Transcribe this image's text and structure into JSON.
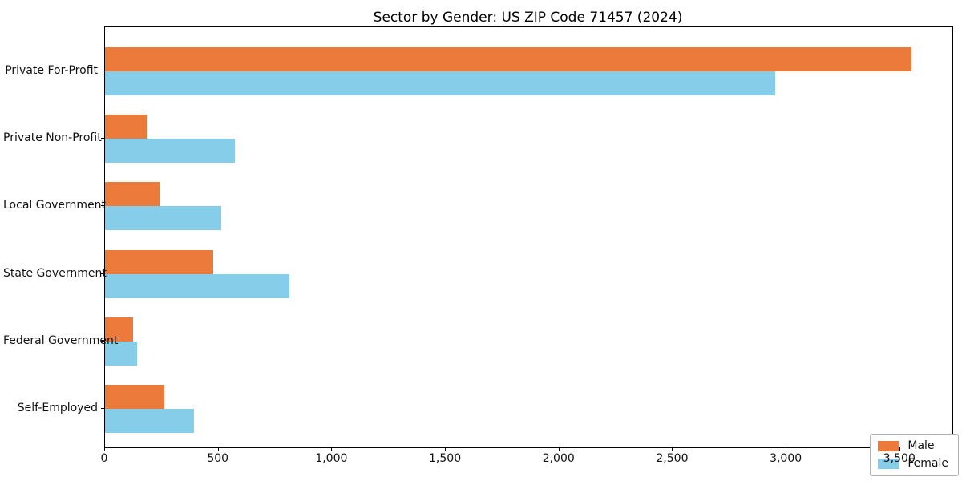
{
  "chart_data": {
    "type": "bar",
    "orientation": "horizontal",
    "title": "Sector by Gender: US ZIP Code 71457 (2024)",
    "categories": [
      "Private For-Profit",
      "Private Non-Profit",
      "Local Government",
      "State Government",
      "Federal Government",
      "Self-Employed"
    ],
    "series": [
      {
        "name": "Male",
        "color": "#EB7A3B",
        "values": [
          3550,
          185,
          240,
          475,
          125,
          260
        ]
      },
      {
        "name": "Female",
        "color": "#86CDE9",
        "values": [
          2950,
          570,
          510,
          810,
          140,
          390
        ]
      }
    ],
    "xlabel": "",
    "ylabel": "",
    "xlim": [
      0,
      3730
    ],
    "x_ticks": [
      0,
      500,
      1000,
      1500,
      2000,
      2500,
      3000,
      3500
    ],
    "x_tick_labels": [
      "0",
      "500",
      "1,000",
      "1,500",
      "2,000",
      "2,500",
      "3,000",
      "3,500"
    ],
    "grid": false,
    "legend_position": "lower right",
    "background_color": "#ffffff",
    "spine_color": "#000000"
  }
}
